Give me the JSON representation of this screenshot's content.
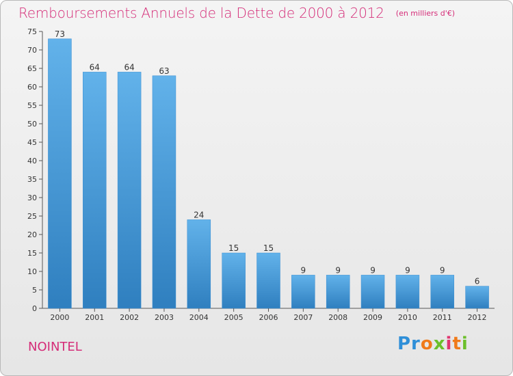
{
  "header": {
    "title": "Remboursements Annuels de la Dette de 2000 à 2012",
    "unit": "(en milliers d'€)"
  },
  "footer": {
    "commune": "NOINTEL",
    "brand": "Proxiti"
  },
  "colors": {
    "title": "#d52c78",
    "bar_light": "#62b2ea",
    "bar_dark": "#2f7fbf"
  },
  "chart_data": {
    "type": "bar",
    "title": "Remboursements Annuels de la Dette de 2000 à 2012",
    "categories": [
      "2000",
      "2001",
      "2002",
      "2003",
      "2004",
      "2005",
      "2006",
      "2007",
      "2008",
      "2009",
      "2010",
      "2011",
      "2012"
    ],
    "values": [
      73,
      64,
      64,
      63,
      24,
      15,
      15,
      9,
      9,
      9,
      9,
      9,
      6
    ],
    "ylim": [
      0,
      75
    ],
    "yticks": [
      0,
      5,
      10,
      15,
      20,
      25,
      30,
      35,
      40,
      45,
      50,
      55,
      60,
      65,
      70,
      75
    ],
    "grid": false,
    "xlabel": "",
    "ylabel": ""
  }
}
